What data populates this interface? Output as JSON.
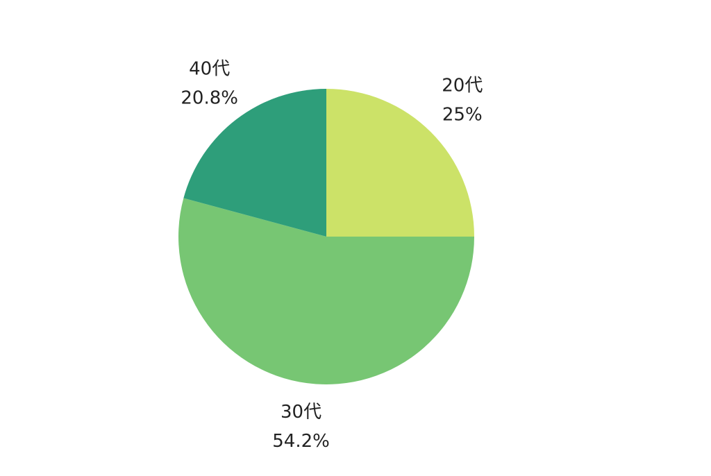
{
  "chart_data": {
    "type": "pie",
    "categories": [
      "20代",
      "30代",
      "40代"
    ],
    "values": [
      25,
      54.2,
      20.8
    ],
    "value_labels": [
      "25%",
      "54.2%",
      "20.8%"
    ],
    "colors": [
      "#cce268",
      "#77c673",
      "#2e9e7a"
    ]
  }
}
